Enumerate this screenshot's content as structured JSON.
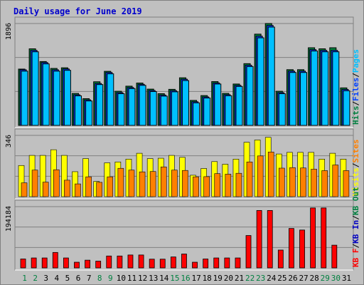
{
  "page": {
    "title": "Daily usage for June 2019"
  },
  "colors": {
    "hits": "#008040",
    "files": "#0040ff",
    "pages": "#00c0ff",
    "visits": "#ffff00",
    "sites": "#ff8000",
    "kbin": "#0000c0",
    "kbout": "#008040",
    "kbf": "#ff0000",
    "day_normal": "#008040",
    "day_weekend": "#008040"
  },
  "chart_data": [
    {
      "type": "bar",
      "panel": "top",
      "ymax_label": "1896",
      "ylim": [
        0,
        1896
      ],
      "categories": [
        "1",
        "2",
        "3",
        "4",
        "5",
        "6",
        "7",
        "8",
        "9",
        "10",
        "11",
        "12",
        "13",
        "14",
        "15",
        "16",
        "17",
        "18",
        "19",
        "20",
        "21",
        "22",
        "23",
        "24",
        "25",
        "26",
        "27",
        "28",
        "29",
        "30",
        "31"
      ],
      "legend_side": [
        {
          "text": "Hits",
          "color_key": "hits"
        },
        {
          "text": "/",
          "color_key": ""
        },
        {
          "text": "Files",
          "color_key": "files"
        },
        {
          "text": "/",
          "color_key": ""
        },
        {
          "text": "Pages",
          "color_key": "pages"
        }
      ],
      "series": [
        {
          "name": "Hits",
          "values": [
            1048,
            1425,
            1188,
            1060,
            1072,
            595,
            497,
            812,
            1006,
            635,
            730,
            788,
            675,
            590,
            671,
            886,
            465,
            555,
            815,
            596,
            770,
            1149,
            1698,
            1896,
            635,
            1037,
            1037,
            1445,
            1425,
            1445,
            698
          ]
        },
        {
          "name": "Files",
          "values": [
            1035,
            1396,
            1170,
            1035,
            1050,
            570,
            475,
            780,
            985,
            610,
            705,
            765,
            650,
            565,
            647,
            860,
            440,
            530,
            790,
            572,
            745,
            1120,
            1660,
            1860,
            610,
            1010,
            1010,
            1410,
            1396,
            1396,
            670
          ]
        },
        {
          "name": "Pages",
          "values": [
            1010,
            1370,
            1145,
            1010,
            1025,
            550,
            455,
            760,
            960,
            590,
            685,
            745,
            630,
            545,
            625,
            835,
            420,
            510,
            770,
            552,
            725,
            1095,
            1630,
            1830,
            590,
            985,
            985,
            1385,
            1370,
            1370,
            645
          ]
        }
      ]
    },
    {
      "type": "bar",
      "panel": "middle",
      "ymax_label": "346",
      "ylim": [
        0,
        346
      ],
      "categories": [
        "1",
        "2",
        "3",
        "4",
        "5",
        "6",
        "7",
        "8",
        "9",
        "10",
        "11",
        "12",
        "13",
        "14",
        "15",
        "16",
        "17",
        "18",
        "19",
        "20",
        "21",
        "22",
        "23",
        "24",
        "25",
        "26",
        "27",
        "28",
        "29",
        "30",
        "31"
      ],
      "legend_side": [
        {
          "text": "Visits",
          "color_key": "visits"
        },
        {
          "text": "/",
          "color_key": ""
        },
        {
          "text": "Sites",
          "color_key": "sites"
        }
      ],
      "series": [
        {
          "name": "Visits",
          "values": [
            176,
            233,
            233,
            265,
            233,
            141,
            215,
            86,
            191,
            196,
            212,
            245,
            215,
            217,
            233,
            222,
            121,
            159,
            198,
            183,
            212,
            307,
            320,
            335,
            241,
            250,
            250,
            250,
            212,
            245,
            212
          ]
        },
        {
          "name": "Sites",
          "values": [
            78,
            150,
            82,
            152,
            93,
            72,
            112,
            81,
            112,
            160,
            150,
            140,
            142,
            168,
            150,
            148,
            112,
            113,
            130,
            127,
            132,
            196,
            230,
            252,
            161,
            164,
            162,
            155,
            147,
            179,
            147
          ]
        }
      ]
    },
    {
      "type": "bar",
      "panel": "bottom",
      "ymax_label": "194184",
      "ylim": [
        0,
        194184
      ],
      "categories": [
        "1",
        "2",
        "3",
        "4",
        "5",
        "6",
        "7",
        "8",
        "9",
        "10",
        "11",
        "12",
        "13",
        "14",
        "15",
        "16",
        "17",
        "18",
        "19",
        "20",
        "21",
        "22",
        "23",
        "24",
        "25",
        "26",
        "27",
        "28",
        "29",
        "30",
        "31"
      ],
      "legend_side": [
        {
          "text": "KB F",
          "color_key": "kbf"
        },
        {
          "text": "/",
          "color_key": ""
        },
        {
          "text": "KB In",
          "color_key": "kbin"
        },
        {
          "text": "/",
          "color_key": ""
        },
        {
          "text": "KB Out",
          "color_key": "kbout"
        }
      ],
      "series": [
        {
          "name": "KB F",
          "values": [
            28300,
            31500,
            31500,
            48900,
            31500,
            18000,
            24500,
            21400,
            37700,
            37700,
            40900,
            40900,
            27700,
            27700,
            34700,
            44000,
            18000,
            28300,
            31500,
            31500,
            31500,
            102600,
            182000,
            182000,
            56500,
            125000,
            120000,
            190000,
            190000,
            72000,
            0
          ]
        }
      ]
    }
  ],
  "x_axis": {
    "weekend_days": [
      "1",
      "2",
      "8",
      "9",
      "15",
      "16",
      "22",
      "23",
      "29",
      "30"
    ]
  }
}
